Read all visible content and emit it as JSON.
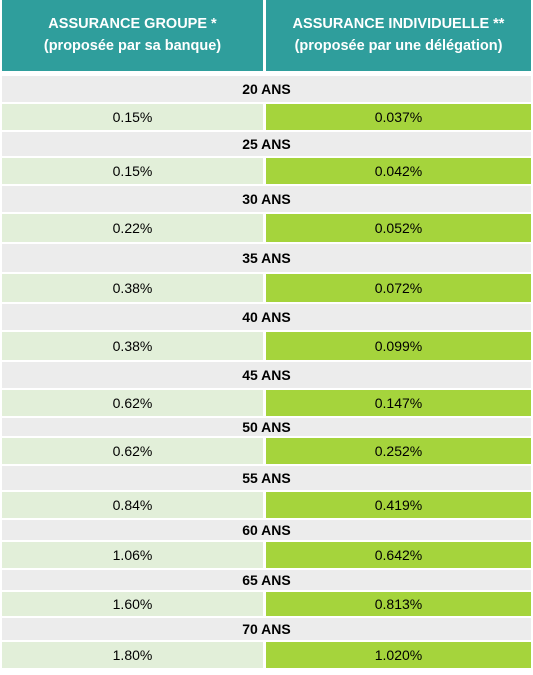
{
  "header": {
    "group_title": "ASSURANCE GROUPE  *",
    "group_subtitle": "(proposée par sa banque)",
    "indiv_title": "ASSURANCE INDIVIDUELLE **",
    "indiv_subtitle": "(proposée par une délégation)"
  },
  "rows": [
    {
      "age": "20 ANS",
      "group": "0.15%",
      "indiv": "0.037%"
    },
    {
      "age": "25 ANS",
      "group": "0.15%",
      "indiv": "0.042%"
    },
    {
      "age": "30 ANS",
      "group": "0.22%",
      "indiv": "0.052%"
    },
    {
      "age": "35 ANS",
      "group": "0.38%",
      "indiv": "0.072%"
    },
    {
      "age": "40 ANS",
      "group": "0.38%",
      "indiv": "0.099%"
    },
    {
      "age": "45 ANS",
      "group": "0.62%",
      "indiv": "0.147%"
    },
    {
      "age": "50 ANS",
      "group": "0.62%",
      "indiv": "0.252%"
    },
    {
      "age": "55 ANS",
      "group": "0.84%",
      "indiv": "0.419%"
    },
    {
      "age": "60 ANS",
      "group": "1.06%",
      "indiv": "0.642%"
    },
    {
      "age": "65 ANS",
      "group": "1.60%",
      "indiv": "0.813%"
    },
    {
      "age": "70 ANS",
      "group": "1.80%",
      "indiv": "1.020%"
    }
  ],
  "colors": {
    "header_bg": "#2f9e9c",
    "age_row_bg": "#ececec",
    "group_cell_bg": "#e2efd9",
    "indiv_cell_bg": "#a5d43c"
  }
}
